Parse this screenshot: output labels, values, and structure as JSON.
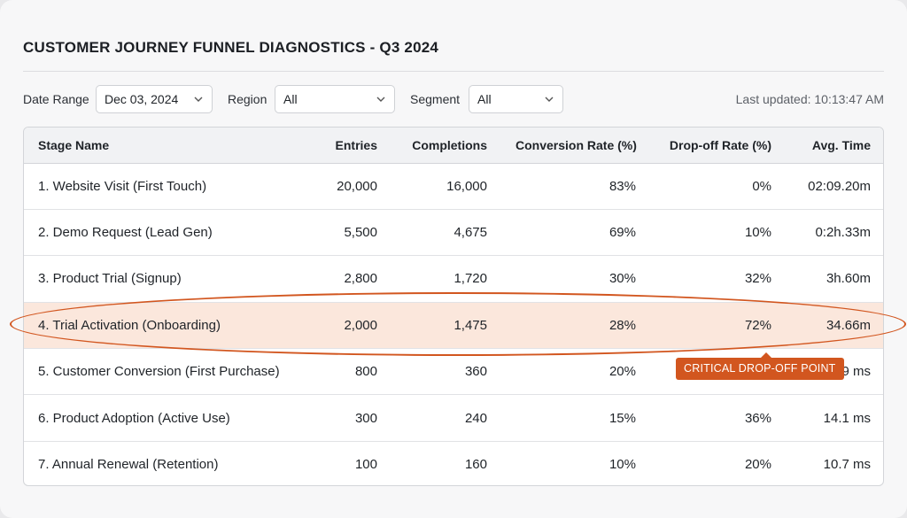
{
  "title": "CUSTOMER JOURNEY FUNNEL DIAGNOSTICS - Q3 2024",
  "filters": {
    "date_range": {
      "label": "Date Range",
      "value": "Dec 03, 2024"
    },
    "region": {
      "label": "Region",
      "value": "All"
    },
    "segment": {
      "label": "Segment",
      "value": "All"
    },
    "last_updated": "Last updated: 10:13:47 AM"
  },
  "table": {
    "columns": [
      "Stage Name",
      "Entries",
      "Completions",
      "Conversion Rate (%)",
      "Drop-off Rate (%)",
      "Avg. Time"
    ],
    "rows": [
      [
        "1. Website Visit (First Touch)",
        "20,000",
        "16,000",
        "83%",
        "0%",
        "02:09.20m"
      ],
      [
        "2. Demo Request (Lead Gen)",
        "5,500",
        "4,675",
        "69%",
        "10%",
        "0:2h.33m"
      ],
      [
        "3. Product Trial (Signup)",
        "2,800",
        "1,720",
        "30%",
        "32%",
        "3h.60m"
      ],
      [
        "4. Trial Activation (Onboarding)",
        "2,000",
        "1,475",
        "28%",
        "72%",
        "34.66m"
      ],
      [
        "5. Customer Conversion (First Purchase)",
        "800",
        "360",
        "20%",
        "",
        "9 ms"
      ],
      [
        "6. Product Adoption (Active Use)",
        "300",
        "240",
        "15%",
        "36%",
        "14.1 ms"
      ],
      [
        "7. Annual Renewal (Retention)",
        "100",
        "160",
        "10%",
        "20%",
        "10.7 ms"
      ]
    ]
  },
  "annotation": {
    "callout_text": "CRITICAL DROP-OFF POINT",
    "color": "#d2561f",
    "highlight_color": "#fbe7dc"
  }
}
